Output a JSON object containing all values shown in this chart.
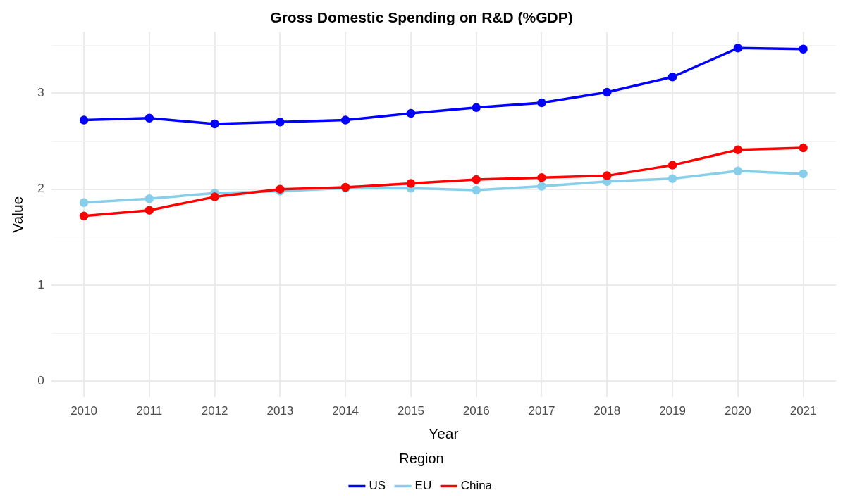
{
  "chart_data": {
    "type": "line",
    "title": "Gross Domestic Spending on R&D (%GDP)",
    "xlabel": "Year",
    "ylabel": "Value",
    "legend_title": "Region",
    "legend": "bottom",
    "grid": true,
    "marker": "circle",
    "line_style": "solid",
    "categories": [
      "2010",
      "2011",
      "2012",
      "2013",
      "2014",
      "2015",
      "2016",
      "2017",
      "2018",
      "2019",
      "2020",
      "2021"
    ],
    "ylim": [
      -0.17,
      3.64
    ],
    "yticks": [
      0,
      {
        "value": 0.5,
        "label": null
      },
      1,
      {
        "value": 1.5,
        "label": null
      },
      2,
      {
        "value": 2.5,
        "label": null
      },
      3,
      {
        "value": 3.5,
        "label": null
      }
    ],
    "series": [
      {
        "name": "US",
        "color": "#0000ff",
        "values": [
          2.72,
          2.74,
          2.68,
          2.7,
          2.72,
          2.79,
          2.85,
          2.9,
          3.01,
          3.17,
          3.47,
          3.46
        ]
      },
      {
        "name": "EU",
        "color": "#87ceeb",
        "values": [
          1.86,
          1.9,
          1.96,
          1.98,
          2.01,
          2.01,
          1.99,
          2.03,
          2.08,
          2.11,
          2.19,
          2.16
        ]
      },
      {
        "name": "China",
        "color": "#ff0000",
        "values": [
          1.72,
          1.78,
          1.92,
          2.0,
          2.02,
          2.06,
          2.1,
          2.12,
          2.14,
          2.25,
          2.41,
          2.43
        ]
      }
    ]
  }
}
